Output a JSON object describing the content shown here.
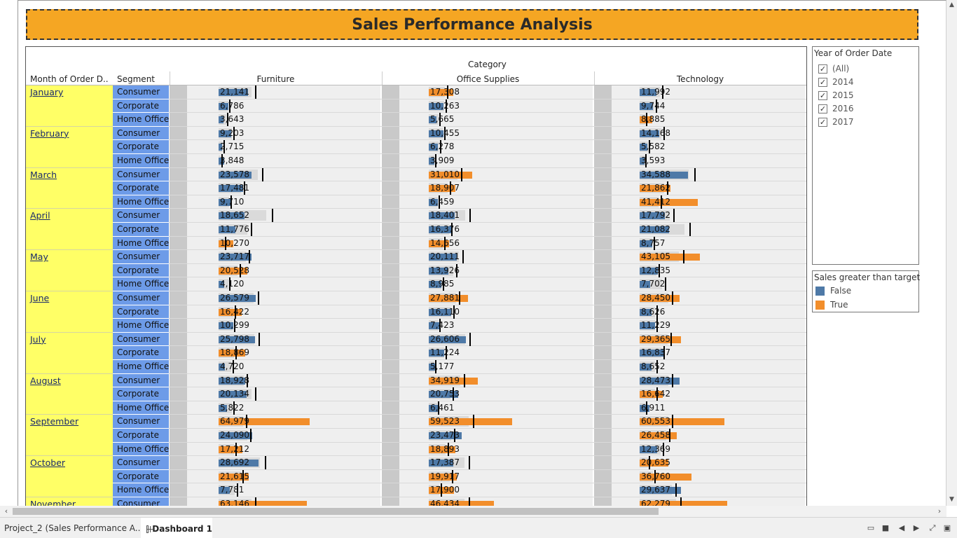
{
  "dashboard": {
    "title": "Sales Performance Analysis",
    "header": {
      "category_label": "Category",
      "month_label": "Month of Order D..",
      "segment_label": "Segment",
      "categories": [
        "Furniture",
        "Office Supplies",
        "Technology"
      ]
    },
    "colors": {
      "false": "#4e79a7",
      "true": "#f28e2b",
      "month_bg": "#ffff66",
      "segment_bg": "#6d9be8",
      "title_bg": "#f5a623"
    },
    "year_filter": {
      "title": "Year of Order Date",
      "options": [
        {
          "label": "(All)",
          "checked": true
        },
        {
          "label": "2014",
          "checked": true
        },
        {
          "label": "2015",
          "checked": true
        },
        {
          "label": "2016",
          "checked": true
        },
        {
          "label": "2017",
          "checked": true
        }
      ]
    },
    "legend": {
      "title": "Sales greater than target",
      "items": [
        {
          "label": "False",
          "color": "#4e79a7"
        },
        {
          "label": "True",
          "color": "#f28e2b"
        }
      ]
    }
  },
  "chart_data": {
    "type": "bar",
    "description_units": "Sales",
    "categories": [
      "Furniture",
      "Office Supplies",
      "Technology"
    ],
    "rows": [
      {
        "month": "January",
        "segment": "Consumer",
        "sales": [
          21141,
          17308,
          11992
        ],
        "target": [
          26000,
          13000,
          16000
        ],
        "above": [
          false,
          true,
          false
        ]
      },
      {
        "month": "January",
        "segment": "Corporate",
        "sales": [
          6786,
          10263,
          9744
        ],
        "target": [
          7500,
          12000,
          11500
        ],
        "above": [
          false,
          false,
          false
        ]
      },
      {
        "month": "January",
        "segment": "Home Office",
        "sales": [
          3643,
          5665,
          8885
        ],
        "target": [
          6000,
          7500,
          4500
        ],
        "above": [
          false,
          false,
          true
        ]
      },
      {
        "month": "February",
        "segment": "Consumer",
        "sales": [
          9203,
          10455,
          14168
        ],
        "target": [
          10500,
          11000,
          17000
        ],
        "above": [
          false,
          false,
          false
        ]
      },
      {
        "month": "February",
        "segment": "Corporate",
        "sales": [
          2715,
          6278,
          5582
        ],
        "target": [
          3500,
          8000,
          6500
        ],
        "above": [
          false,
          false,
          false
        ]
      },
      {
        "month": "February",
        "segment": "Home Office",
        "sales": [
          3848,
          3909,
          3593
        ],
        "target": [
          1800,
          4500,
          4200
        ],
        "above": [
          false,
          false,
          false
        ]
      },
      {
        "month": "March",
        "segment": "Consumer",
        "sales": [
          23578,
          31010,
          34588
        ],
        "target": [
          31000,
          23000,
          39000
        ],
        "above": [
          false,
          true,
          false
        ]
      },
      {
        "month": "March",
        "segment": "Corporate",
        "sales": [
          17481,
          18907,
          21862
        ],
        "target": [
          18000,
          15000,
          19500
        ],
        "above": [
          false,
          true,
          true
        ]
      },
      {
        "month": "March",
        "segment": "Home Office",
        "sales": [
          9710,
          6459,
          41412
        ],
        "target": [
          8500,
          7000,
          15000
        ],
        "above": [
          false,
          false,
          true
        ]
      },
      {
        "month": "April",
        "segment": "Consumer",
        "sales": [
          18652,
          18401,
          17792
        ],
        "target": [
          38000,
          29000,
          24000
        ],
        "above": [
          false,
          false,
          false
        ]
      },
      {
        "month": "April",
        "segment": "Corporate",
        "sales": [
          11776,
          16376,
          21082
        ],
        "target": [
          23000,
          16000,
          35500
        ],
        "above": [
          false,
          false,
          false
        ]
      },
      {
        "month": "April",
        "segment": "Home Office",
        "sales": [
          10270,
          14656,
          8757
        ],
        "target": [
          4300,
          11000,
          10000
        ],
        "above": [
          true,
          true,
          false
        ]
      },
      {
        "month": "May",
        "segment": "Consumer",
        "sales": [
          23717,
          20111,
          43105
        ],
        "target": [
          21500,
          24000,
          31000
        ],
        "above": [
          false,
          false,
          true
        ]
      },
      {
        "month": "May",
        "segment": "Corporate",
        "sales": [
          20528,
          13926,
          12835
        ],
        "target": [
          15000,
          19500,
          13500
        ],
        "above": [
          true,
          false,
          false
        ]
      },
      {
        "month": "May",
        "segment": "Home Office",
        "sales": [
          4120,
          8985,
          7702
        ],
        "target": [
          7500,
          10000,
          18000
        ],
        "above": [
          false,
          false,
          false
        ]
      },
      {
        "month": "June",
        "segment": "Consumer",
        "sales": [
          26579,
          27881,
          28450
        ],
        "target": [
          28000,
          21500,
          23000
        ],
        "above": [
          false,
          true,
          true
        ]
      },
      {
        "month": "June",
        "segment": "Corporate",
        "sales": [
          16422,
          16110,
          8626
        ],
        "target": [
          11500,
          17500,
          12000
        ],
        "above": [
          true,
          false,
          false
        ]
      },
      {
        "month": "June",
        "segment": "Home Office",
        "sales": [
          10299,
          7423,
          11229
        ],
        "target": [
          11000,
          7500,
          12000
        ],
        "above": [
          false,
          false,
          false
        ]
      },
      {
        "month": "July",
        "segment": "Consumer",
        "sales": [
          25798,
          26606,
          29365
        ],
        "target": [
          28500,
          29000,
          22000
        ],
        "above": [
          false,
          false,
          true
        ]
      },
      {
        "month": "July",
        "segment": "Corporate",
        "sales": [
          18869,
          11224,
          16837
        ],
        "target": [
          12000,
          12000,
          17000
        ],
        "above": [
          true,
          false,
          false
        ]
      },
      {
        "month": "July",
        "segment": "Home Office",
        "sales": [
          4720,
          5177,
          8652
        ],
        "target": [
          10000,
          4500,
          12000
        ],
        "above": [
          false,
          false,
          false
        ]
      },
      {
        "month": "August",
        "segment": "Consumer",
        "sales": [
          18928,
          34919,
          28473
        ],
        "target": [
          20000,
          25000,
          23000
        ],
        "above": [
          false,
          true,
          false
        ]
      },
      {
        "month": "August",
        "segment": "Corporate",
        "sales": [
          20134,
          20753,
          16642
        ],
        "target": [
          26000,
          17000,
          12000
        ],
        "above": [
          false,
          false,
          true
        ]
      },
      {
        "month": "August",
        "segment": "Home Office",
        "sales": [
          5822,
          6461,
          6911
        ],
        "target": [
          10500,
          6500,
          4400
        ],
        "above": [
          false,
          false,
          false
        ]
      },
      {
        "month": "September",
        "segment": "Consumer",
        "sales": [
          64979,
          59523,
          60553
        ],
        "target": [
          19500,
          31500,
          23000
        ],
        "above": [
          true,
          true,
          true
        ]
      },
      {
        "month": "September",
        "segment": "Corporate",
        "sales": [
          24090,
          23473,
          26458
        ],
        "target": [
          22500,
          18000,
          21000
        ],
        "above": [
          false,
          false,
          true
        ]
      },
      {
        "month": "September",
        "segment": "Home Office",
        "sales": [
          17212,
          18893,
          12369
        ],
        "target": [
          12000,
          13500,
          16500
        ],
        "above": [
          true,
          true,
          false
        ]
      },
      {
        "month": "October",
        "segment": "Consumer",
        "sales": [
          28692,
          17387,
          20635
        ],
        "target": [
          33000,
          28500,
          6500
        ],
        "above": [
          false,
          false,
          true
        ]
      },
      {
        "month": "October",
        "segment": "Corporate",
        "sales": [
          21615,
          19917,
          36760
        ],
        "target": [
          17000,
          16500,
          10500
        ],
        "above": [
          true,
          true,
          true
        ]
      },
      {
        "month": "October",
        "segment": "Home Office",
        "sales": [
          7781,
          17900,
          29637
        ],
        "target": [
          13000,
          8500,
          25500
        ],
        "above": [
          false,
          true,
          false
        ]
      },
      {
        "month": "November",
        "segment": "Consumer",
        "sales": [
          63146,
          46434,
          62279
        ],
        "target": [
          26000,
          28500,
          29000
        ],
        "above": [
          true,
          true,
          true
        ]
      }
    ],
    "legend": [
      "False",
      "True"
    ],
    "legend_title": "Sales greater than target"
  },
  "tabs": [
    {
      "label": "Project_2 (Sales Performance A...",
      "active": false
    },
    {
      "label": "Dashboard 1",
      "active": true
    }
  ]
}
